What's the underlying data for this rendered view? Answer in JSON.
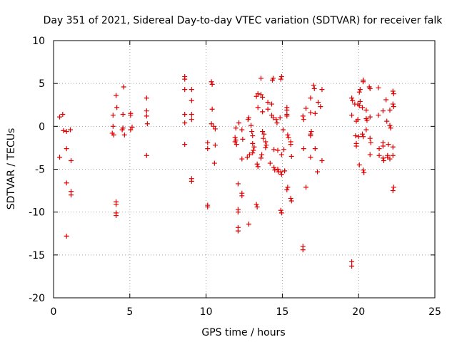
{
  "chart_data": {
    "type": "scatter",
    "title": "Day 351 of 2021, Sidereal Day-to-day VTEC variation (SDTVAR) for receiver falk",
    "xlabel": "GPS time / hours",
    "ylabel": "SDTVAR / TECUs",
    "xlim": [
      0,
      25
    ],
    "ylim": [
      -20,
      10
    ],
    "xticks": [
      0,
      5,
      10,
      15,
      20,
      25
    ],
    "yticks": [
      -20,
      -15,
      -10,
      -5,
      0,
      5,
      10
    ],
    "grid": true,
    "marker": "+",
    "color": "#e00000",
    "series": [
      {
        "name": "SDTVAR",
        "points": [
          [
            0.4,
            1.1
          ],
          [
            0.6,
            1.4
          ],
          [
            0.4,
            -3.6
          ],
          [
            0.65,
            -0.5
          ],
          [
            0.85,
            -0.6
          ],
          [
            1.1,
            -0.4
          ],
          [
            0.85,
            -2.6
          ],
          [
            1.15,
            -4.0
          ],
          [
            0.85,
            -6.6
          ],
          [
            1.15,
            -7.6
          ],
          [
            1.15,
            -8.0
          ],
          [
            0.85,
            -12.8
          ],
          [
            3.9,
            1.3
          ],
          [
            3.9,
            0.0
          ],
          [
            3.85,
            -0.8
          ],
          [
            3.95,
            -1.0
          ],
          [
            4.1,
            3.6
          ],
          [
            4.15,
            2.2
          ],
          [
            4.1,
            -8.8
          ],
          [
            4.1,
            -9.1
          ],
          [
            4.1,
            -10.1
          ],
          [
            4.1,
            -10.4
          ],
          [
            4.6,
            4.6
          ],
          [
            4.55,
            1.4
          ],
          [
            4.55,
            -0.2
          ],
          [
            4.5,
            -0.4
          ],
          [
            4.65,
            -1.0
          ],
          [
            5.05,
            1.3
          ],
          [
            5.05,
            1.5
          ],
          [
            5.15,
            -0.1
          ],
          [
            5.05,
            -0.4
          ],
          [
            6.1,
            3.3
          ],
          [
            6.1,
            1.8
          ],
          [
            6.1,
            1.2
          ],
          [
            6.15,
            0.3
          ],
          [
            6.1,
            -3.4
          ],
          [
            8.6,
            5.8
          ],
          [
            8.6,
            5.5
          ],
          [
            8.6,
            4.3
          ],
          [
            8.6,
            1.4
          ],
          [
            8.6,
            0.4
          ],
          [
            8.6,
            -2.1
          ],
          [
            9.05,
            4.3
          ],
          [
            9.05,
            3.0
          ],
          [
            9.05,
            1.4
          ],
          [
            9.05,
            0.8
          ],
          [
            9.05,
            -6.1
          ],
          [
            9.05,
            -6.4
          ],
          [
            10.1,
            -1.9
          ],
          [
            10.1,
            -2.6
          ],
          [
            10.1,
            -9.2
          ],
          [
            10.1,
            -9.4
          ],
          [
            10.35,
            5.2
          ],
          [
            10.4,
            4.9
          ],
          [
            10.4,
            2.0
          ],
          [
            10.35,
            0.3
          ],
          [
            10.5,
            0.0
          ],
          [
            10.6,
            -0.3
          ],
          [
            10.6,
            -2.2
          ],
          [
            10.55,
            -4.3
          ],
          [
            11.9,
            -1.3
          ],
          [
            11.95,
            -1.6
          ],
          [
            11.9,
            -1.8
          ],
          [
            11.95,
            -0.2
          ],
          [
            12.15,
            0.4
          ],
          [
            12.0,
            -2.1
          ],
          [
            12.1,
            -6.7
          ],
          [
            12.1,
            -9.7
          ],
          [
            12.1,
            -10.0
          ],
          [
            12.1,
            -11.8
          ],
          [
            12.1,
            -12.2
          ],
          [
            12.35,
            -3.8
          ],
          [
            12.4,
            -1.5
          ],
          [
            12.35,
            -0.4
          ],
          [
            12.35,
            -7.8
          ],
          [
            12.35,
            -8.1
          ],
          [
            12.75,
            0.8
          ],
          [
            12.8,
            1.0
          ],
          [
            12.7,
            -3.6
          ],
          [
            12.85,
            -3.3
          ],
          [
            12.8,
            -11.4
          ],
          [
            12.95,
            0.1
          ],
          [
            13.0,
            -0.6
          ],
          [
            13.05,
            -1.1
          ],
          [
            13.05,
            -2.0
          ],
          [
            13.15,
            -2.4
          ],
          [
            13.1,
            -2.8
          ],
          [
            13.05,
            -3.1
          ],
          [
            13.35,
            -4.4
          ],
          [
            13.4,
            -4.7
          ],
          [
            13.3,
            3.5
          ],
          [
            13.4,
            3.8
          ],
          [
            13.4,
            2.2
          ],
          [
            13.3,
            -9.1
          ],
          [
            13.35,
            -9.4
          ],
          [
            13.6,
            5.6
          ],
          [
            13.6,
            3.7
          ],
          [
            13.7,
            3.4
          ],
          [
            13.7,
            1.7
          ],
          [
            13.7,
            -0.6
          ],
          [
            13.8,
            -0.9
          ],
          [
            13.75,
            -1.4
          ],
          [
            13.65,
            -3.3
          ],
          [
            13.6,
            -3.7
          ],
          [
            13.9,
            -1.8
          ],
          [
            13.95,
            -2.2
          ],
          [
            13.9,
            -2.5
          ],
          [
            14.05,
            2.8
          ],
          [
            14.05,
            2.0
          ],
          [
            14.2,
            -4.3
          ],
          [
            14.3,
            2.6
          ],
          [
            14.3,
            1.3
          ],
          [
            14.35,
            5.4
          ],
          [
            14.4,
            5.6
          ],
          [
            14.4,
            1.0
          ],
          [
            14.45,
            -2.7
          ],
          [
            14.45,
            -4.8
          ],
          [
            14.5,
            -5.1
          ],
          [
            14.6,
            0.8
          ],
          [
            14.65,
            0.4
          ],
          [
            14.7,
            -5.0
          ],
          [
            14.75,
            -5.3
          ],
          [
            14.7,
            -2.8
          ],
          [
            14.85,
            1.0
          ],
          [
            14.9,
            5.5
          ],
          [
            14.95,
            5.8
          ],
          [
            14.95,
            -3.3
          ],
          [
            14.9,
            -5.3
          ],
          [
            14.95,
            -5.6
          ],
          [
            14.9,
            -9.8
          ],
          [
            14.95,
            -10.1
          ],
          [
            15.05,
            -0.4
          ],
          [
            15.1,
            -2.7
          ],
          [
            15.15,
            -5.2
          ],
          [
            15.3,
            2.2
          ],
          [
            15.3,
            1.9
          ],
          [
            15.3,
            1.4
          ],
          [
            15.3,
            1.2
          ],
          [
            15.35,
            -1.0
          ],
          [
            15.4,
            -1.3
          ],
          [
            15.35,
            -7.1
          ],
          [
            15.3,
            -7.4
          ],
          [
            15.55,
            -1.8
          ],
          [
            15.55,
            -2.1
          ],
          [
            15.6,
            -3.5
          ],
          [
            15.55,
            -8.4
          ],
          [
            15.6,
            -8.7
          ],
          [
            16.35,
            1.2
          ],
          [
            16.4,
            0.8
          ],
          [
            16.4,
            -2.6
          ],
          [
            16.35,
            -14.0
          ],
          [
            16.35,
            -14.4
          ],
          [
            16.55,
            2.1
          ],
          [
            16.55,
            -7.1
          ],
          [
            16.85,
            1.6
          ],
          [
            16.85,
            -0.9
          ],
          [
            16.85,
            -1.1
          ],
          [
            16.9,
            -0.6
          ],
          [
            16.85,
            -3.6
          ],
          [
            16.85,
            3.3
          ],
          [
            17.05,
            4.8
          ],
          [
            17.1,
            4.4
          ],
          [
            17.15,
            1.5
          ],
          [
            17.15,
            -2.6
          ],
          [
            17.35,
            2.8
          ],
          [
            17.3,
            -5.3
          ],
          [
            17.5,
            2.3
          ],
          [
            17.6,
            4.3
          ],
          [
            17.6,
            -4.0
          ],
          [
            19.55,
            3.3
          ],
          [
            19.6,
            3.0
          ],
          [
            19.55,
            1.3
          ],
          [
            19.55,
            -15.8
          ],
          [
            19.55,
            -16.3
          ],
          [
            19.75,
            2.6
          ],
          [
            19.85,
            0.6
          ],
          [
            19.8,
            -1.1
          ],
          [
            19.85,
            -2.0
          ],
          [
            19.85,
            -2.3
          ],
          [
            19.95,
            2.6
          ],
          [
            19.95,
            0.8
          ],
          [
            20.0,
            -1.2
          ],
          [
            20.05,
            4.0
          ],
          [
            20.1,
            4.3
          ],
          [
            20.1,
            2.9
          ],
          [
            20.05,
            2.4
          ],
          [
            20.05,
            -4.5
          ],
          [
            20.25,
            2.2
          ],
          [
            20.3,
            5.4
          ],
          [
            20.3,
            5.2
          ],
          [
            20.25,
            -0.9
          ],
          [
            20.3,
            -1.2
          ],
          [
            20.3,
            -5.1
          ],
          [
            20.35,
            -5.4
          ],
          [
            20.5,
            1.9
          ],
          [
            20.5,
            0.9
          ],
          [
            20.55,
            0.7
          ],
          [
            20.5,
            -0.4
          ],
          [
            20.7,
            4.6
          ],
          [
            20.75,
            4.4
          ],
          [
            20.75,
            1.1
          ],
          [
            20.75,
            -1.4
          ],
          [
            20.8,
            -1.9
          ],
          [
            20.75,
            -3.3
          ],
          [
            21.3,
            4.5
          ],
          [
            21.3,
            1.3
          ],
          [
            21.35,
            -3.4
          ],
          [
            21.35,
            -2.6
          ],
          [
            21.6,
            1.8
          ],
          [
            21.6,
            -1.9
          ],
          [
            21.6,
            -3.7
          ],
          [
            21.65,
            -4.0
          ],
          [
            21.6,
            -2.3
          ],
          [
            21.8,
            3.1
          ],
          [
            21.85,
            0.6
          ],
          [
            21.9,
            -3.4
          ],
          [
            21.9,
            -3.6
          ],
          [
            21.95,
            -2.1
          ],
          [
            22.05,
            1.9
          ],
          [
            22.05,
            0.1
          ],
          [
            22.1,
            -0.2
          ],
          [
            22.05,
            -3.8
          ],
          [
            22.25,
            4.1
          ],
          [
            22.3,
            3.8
          ],
          [
            22.25,
            2.6
          ],
          [
            22.3,
            2.3
          ],
          [
            22.25,
            -2.4
          ],
          [
            22.25,
            -3.4
          ],
          [
            22.3,
            -7.1
          ],
          [
            22.25,
            -7.5
          ]
        ]
      }
    ]
  }
}
